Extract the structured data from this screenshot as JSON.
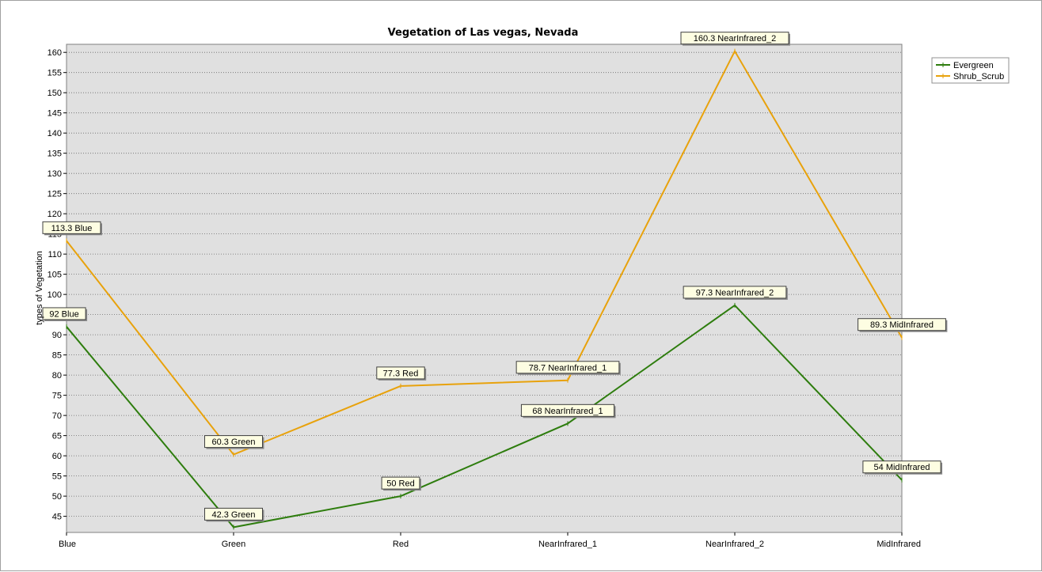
{
  "chart_data": {
    "type": "line",
    "title": "Vegetation of Las vegas, Nevada",
    "xlabel": "",
    "ylabel": "types of Vegetation",
    "categories": [
      "Blue",
      "Green",
      "Red",
      "NearInfrared_1",
      "NearInfrared_2",
      "MidInfrared"
    ],
    "ylim": [
      41,
      162
    ],
    "yticks": [
      45,
      50,
      55,
      60,
      65,
      70,
      75,
      80,
      85,
      90,
      95,
      100,
      105,
      110,
      115,
      120,
      125,
      130,
      135,
      140,
      145,
      150,
      155,
      160
    ],
    "grid": true,
    "legend_position": "top-right",
    "series": [
      {
        "name": "Evergreen",
        "color": "#2e7d0e",
        "values": [
          92,
          42.3,
          50,
          68,
          97.3,
          54
        ],
        "labels": [
          "92 Blue",
          "42.3 Green",
          "50 Red",
          "68 NearInfrared_1",
          "97.3 NearInfrared_2",
          "54 MidInfrared"
        ]
      },
      {
        "name": "Shrub_Scrub",
        "color": "#e8a20c",
        "values": [
          113.3,
          60.3,
          77.3,
          78.7,
          160.3,
          89.3
        ],
        "labels": [
          "113.3 Blue",
          "60.3 Green",
          "77.3 Red",
          "78.7 NearInfrared_1",
          "160.3 NearInfrared_2",
          "89.3 MidInfrared"
        ]
      }
    ]
  }
}
